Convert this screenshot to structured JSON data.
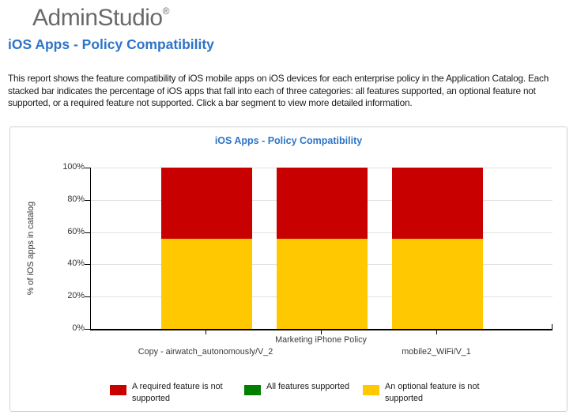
{
  "logo": {
    "text": "AdminStudio",
    "registered": "®"
  },
  "header": {
    "title": "iOS Apps - Policy Compatibility",
    "description": "This report shows the feature compatibility of iOS mobile apps on iOS devices for each enterprise policy in the Application Catalog. Each stacked bar indicates the percentage of iOS apps that fall into each of three categories: all features supported, an optional feature not supported, or a required feature not supported. Click a bar segment to view more detailed information."
  },
  "colors": {
    "heading": "#2E74C8",
    "logo": "#6A6A6A",
    "axis": "#000000",
    "grid": "#E0E0E0",
    "panel_border": "#D2D2D2"
  },
  "chart_data": {
    "type": "bar",
    "stacked": true,
    "title": "iOS Apps - Policy Compatibility",
    "xlabel": "",
    "ylabel": "% of iOS apps in catalog",
    "ylim": [
      0,
      100
    ],
    "ytick_labels": [
      "0%",
      "20%",
      "40%",
      "60%",
      "80%",
      "100%"
    ],
    "grid": "horizontal",
    "legend_position": "bottom",
    "categories": [
      "Copy - airwatch_autonomously/V_2",
      "Marketing iPhone Policy",
      "mobile2_WiFi/V_1"
    ],
    "series": [
      {
        "name": "An optional feature is not supported",
        "color": "#FFC800",
        "values": [
          56,
          56,
          56
        ]
      },
      {
        "name": "All features supported",
        "color": "#008000",
        "values": [
          0,
          0,
          0
        ]
      },
      {
        "name": "A required feature is not supported",
        "color": "#C80000",
        "values": [
          44,
          44,
          44
        ]
      }
    ],
    "legend": [
      {
        "label": "A required feature is not supported",
        "color": "#C80000"
      },
      {
        "label": "All features supported",
        "color": "#008000"
      },
      {
        "label": "An optional feature is not supported",
        "color": "#FFC800"
      }
    ]
  }
}
